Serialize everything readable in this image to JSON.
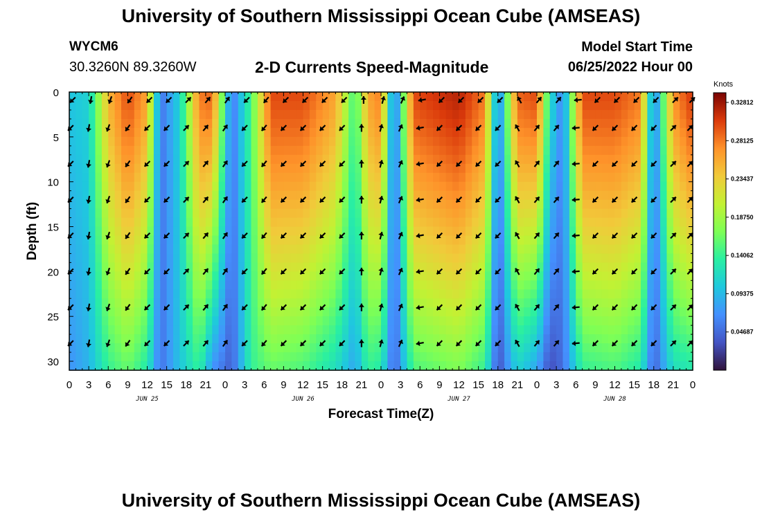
{
  "header": {
    "title": "University of Southern Mississippi Ocean Cube (AMSEAS)",
    "station": "WYCM6",
    "coords": "30.3260N  89.3260W",
    "subtitle": "2-D Currents Speed-Magnitude",
    "model_start_label": "Model Start Time",
    "model_start_value": "06/25/2022 Hour 00"
  },
  "footer": {
    "title": "University of Southern Mississippi Ocean Cube (AMSEAS)"
  },
  "chart_data": {
    "type": "heatmap",
    "title": "2-D Currents Speed-Magnitude",
    "xlabel": "Forecast Time(Z)",
    "ylabel": "Depth (ft)",
    "x_range_hours": [
      0,
      96
    ],
    "y_range_ft": [
      0,
      31
    ],
    "x_ticks": [
      "0",
      "3",
      "6",
      "9",
      "12",
      "15",
      "18",
      "21",
      "0",
      "3",
      "6",
      "9",
      "12",
      "15",
      "18",
      "21",
      "0",
      "3",
      "6",
      "9",
      "12",
      "15",
      "18",
      "21",
      "0",
      "3",
      "6",
      "9",
      "12",
      "15",
      "18",
      "21",
      "0"
    ],
    "y_ticks": [
      "0",
      "5",
      "10",
      "15",
      "20",
      "25",
      "30"
    ],
    "day_labels": [
      {
        "label": "JUN 25",
        "hour": 12
      },
      {
        "label": "JUN 26",
        "hour": 36
      },
      {
        "label": "JUN 27",
        "hour": 60
      },
      {
        "label": "JUN 28",
        "hour": 84
      }
    ],
    "colorbar": {
      "unit": "Knots",
      "min": 0.0,
      "max": 0.34,
      "ticks": [
        "0.32812",
        "0.28125",
        "0.23437",
        "0.18750",
        "0.14062",
        "0.09375",
        "0.04687"
      ],
      "tick_values": [
        0.32812,
        0.28125,
        0.23437,
        0.1875,
        0.14062,
        0.09375,
        0.04687
      ]
    },
    "speed_knots_by_hour": [
      {
        "h": 0,
        "surface": 0.1,
        "bottom": 0.07
      },
      {
        "h": 3,
        "surface": 0.11,
        "bottom": 0.09
      },
      {
        "h": 6,
        "surface": 0.25,
        "bottom": 0.14
      },
      {
        "h": 9,
        "surface": 0.3,
        "bottom": 0.16
      },
      {
        "h": 12,
        "surface": 0.26,
        "bottom": 0.13
      },
      {
        "h": 14,
        "surface": 0.05,
        "bottom": 0.05
      },
      {
        "h": 17,
        "surface": 0.11,
        "bottom": 0.1
      },
      {
        "h": 20,
        "surface": 0.28,
        "bottom": 0.14
      },
      {
        "h": 22,
        "surface": 0.29,
        "bottom": 0.07
      },
      {
        "h": 25,
        "surface": 0.05,
        "bottom": 0.04
      },
      {
        "h": 28,
        "surface": 0.15,
        "bottom": 0.14
      },
      {
        "h": 31,
        "surface": 0.3,
        "bottom": 0.16
      },
      {
        "h": 36,
        "surface": 0.3,
        "bottom": 0.15
      },
      {
        "h": 41,
        "surface": 0.26,
        "bottom": 0.12
      },
      {
        "h": 44,
        "surface": 0.14,
        "bottom": 0.08
      },
      {
        "h": 46,
        "surface": 0.26,
        "bottom": 0.14
      },
      {
        "h": 48,
        "surface": 0.28,
        "bottom": 0.13
      },
      {
        "h": 50,
        "surface": 0.04,
        "bottom": 0.04
      },
      {
        "h": 53,
        "surface": 0.3,
        "bottom": 0.15
      },
      {
        "h": 60,
        "surface": 0.32,
        "bottom": 0.17
      },
      {
        "h": 64,
        "surface": 0.28,
        "bottom": 0.14
      },
      {
        "h": 66,
        "surface": 0.05,
        "bottom": 0.03
      },
      {
        "h": 69,
        "surface": 0.29,
        "bottom": 0.11
      },
      {
        "h": 72,
        "surface": 0.3,
        "bottom": 0.08
      },
      {
        "h": 74,
        "surface": 0.12,
        "bottom": 0.03
      },
      {
        "h": 76,
        "surface": 0.06,
        "bottom": 0.05
      },
      {
        "h": 79,
        "surface": 0.3,
        "bottom": 0.14
      },
      {
        "h": 84,
        "surface": 0.3,
        "bottom": 0.15
      },
      {
        "h": 88,
        "surface": 0.28,
        "bottom": 0.13
      },
      {
        "h": 90,
        "surface": 0.05,
        "bottom": 0.04
      },
      {
        "h": 93,
        "surface": 0.27,
        "bottom": 0.12
      },
      {
        "h": 96,
        "surface": 0.31,
        "bottom": 0.13
      }
    ],
    "vector_direction_by_hour": [
      {
        "h": 0,
        "deg": 225
      },
      {
        "h": 3,
        "deg": 190
      },
      {
        "h": 6,
        "deg": 200
      },
      {
        "h": 9,
        "deg": 215
      },
      {
        "h": 12,
        "deg": 225
      },
      {
        "h": 15,
        "deg": 225
      },
      {
        "h": 18,
        "deg": 45
      },
      {
        "h": 21,
        "deg": 40
      },
      {
        "h": 24,
        "deg": 35
      },
      {
        "h": 27,
        "deg": 225
      },
      {
        "h": 30,
        "deg": 220
      },
      {
        "h": 33,
        "deg": 225
      },
      {
        "h": 36,
        "deg": 225
      },
      {
        "h": 39,
        "deg": 225
      },
      {
        "h": 42,
        "deg": 225
      },
      {
        "h": 45,
        "deg": 0
      },
      {
        "h": 48,
        "deg": 15
      },
      {
        "h": 51,
        "deg": 25
      },
      {
        "h": 54,
        "deg": 260
      },
      {
        "h": 57,
        "deg": 225
      },
      {
        "h": 60,
        "deg": 225
      },
      {
        "h": 63,
        "deg": 225
      },
      {
        "h": 66,
        "deg": 225
      },
      {
        "h": 69,
        "deg": 330
      },
      {
        "h": 72,
        "deg": 40
      },
      {
        "h": 75,
        "deg": 40
      },
      {
        "h": 78,
        "deg": 265
      },
      {
        "h": 81,
        "deg": 225
      },
      {
        "h": 84,
        "deg": 225
      },
      {
        "h": 87,
        "deg": 225
      },
      {
        "h": 90,
        "deg": 225
      },
      {
        "h": 93,
        "deg": 45
      },
      {
        "h": 96,
        "deg": 45
      }
    ]
  }
}
